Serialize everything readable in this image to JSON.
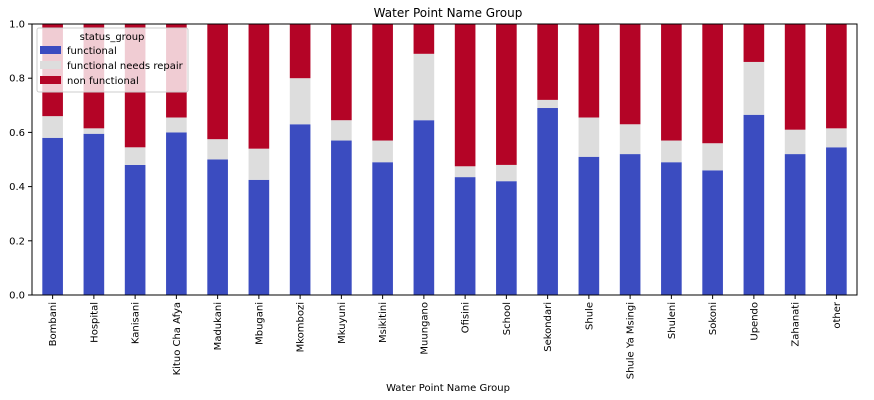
{
  "chart_data": {
    "type": "bar",
    "stacked": true,
    "title": "Water Point Name Group",
    "xlabel": "Water Point Name Group",
    "ylabel": "",
    "ylim": [
      0,
      1.0
    ],
    "yticks": [
      "0.0",
      "0.2",
      "0.4",
      "0.6",
      "0.8",
      "1.0"
    ],
    "categories": [
      "Bombani",
      "Hospital",
      "Kanisani",
      "Kituo Cha Afya",
      "Madukani",
      "Mbugani",
      "Mkombozi",
      "Mkuyuni",
      "Msikitini",
      "Muungano",
      "Ofisini",
      "School",
      "Sekondari",
      "Shule",
      "Shule Ya Msingi",
      "Shuleni",
      "Sokoni",
      "Upendo",
      "Zahanati",
      "other"
    ],
    "legend_title": "status_group",
    "legend_position": "top-left",
    "grid": false,
    "series": [
      {
        "name": "functional",
        "color": "#3b4cc0",
        "values": [
          0.58,
          0.595,
          0.48,
          0.6,
          0.5,
          0.425,
          0.63,
          0.57,
          0.49,
          0.645,
          0.435,
          0.42,
          0.69,
          0.51,
          0.52,
          0.49,
          0.46,
          0.665,
          0.52,
          0.545
        ]
      },
      {
        "name": "functional needs repair",
        "color": "#dddddd",
        "values": [
          0.08,
          0.02,
          0.065,
          0.055,
          0.075,
          0.115,
          0.17,
          0.075,
          0.08,
          0.245,
          0.04,
          0.06,
          0.03,
          0.145,
          0.11,
          0.08,
          0.1,
          0.195,
          0.09,
          0.07
        ]
      },
      {
        "name": "non functional",
        "color": "#b40426",
        "values": [
          0.34,
          0.385,
          0.455,
          0.345,
          0.425,
          0.46,
          0.2,
          0.355,
          0.43,
          0.11,
          0.525,
          0.52,
          0.28,
          0.345,
          0.37,
          0.43,
          0.44,
          0.14,
          0.39,
          0.385
        ]
      }
    ]
  }
}
